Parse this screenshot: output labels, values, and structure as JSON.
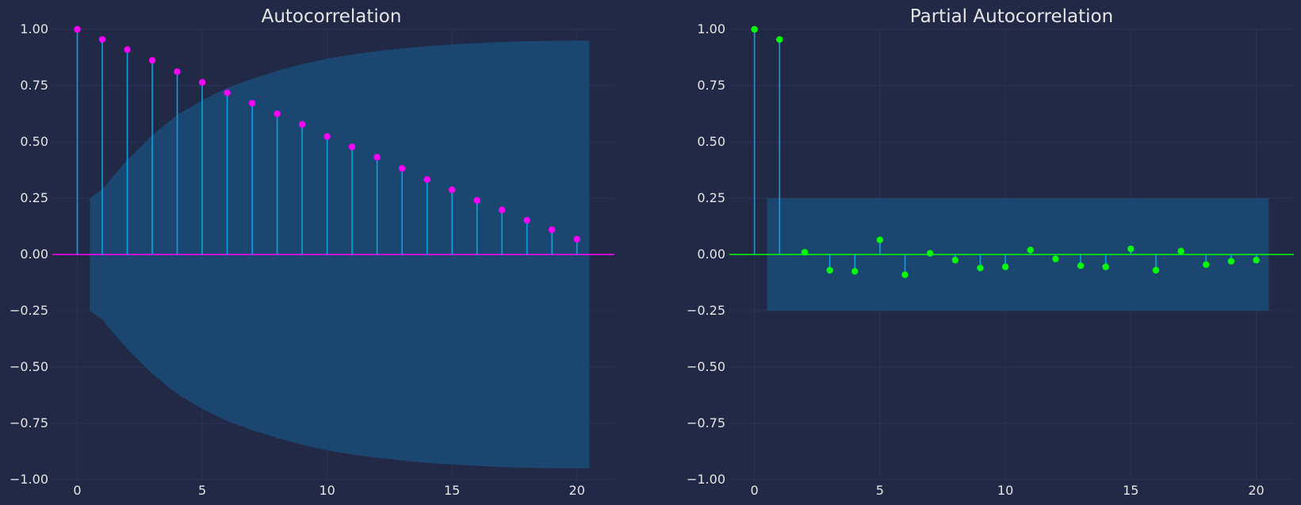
{
  "colors": {
    "background": "#212946",
    "grid": "#2A3459",
    "band": "#1B4670",
    "stem": "#08A2E2"
  },
  "chart_data": [
    {
      "type": "stem",
      "title": "Autocorrelation",
      "xlabel": "",
      "ylabel": "",
      "xlim": [
        -1,
        21.5
      ],
      "ylim": [
        -1.0,
        1.0
      ],
      "xticks": [
        0,
        5,
        10,
        15,
        20
      ],
      "xtick_labels": [
        "0",
        "5",
        "10",
        "15",
        "20"
      ],
      "yticks": [
        1.0,
        0.75,
        0.5,
        0.25,
        0.0,
        -0.25,
        -0.5,
        -0.75,
        -1.0
      ],
      "ytick_labels": [
        "1.00",
        "0.75",
        "0.50",
        "0.25",
        "0.00",
        "−0.25",
        "−0.50",
        "−0.75",
        "−1.00"
      ],
      "grid": true,
      "marker_color": "#FF00FF",
      "baseline_color": "#FF00FF",
      "x": [
        0,
        1,
        2,
        3,
        4,
        5,
        6,
        7,
        8,
        9,
        10,
        11,
        12,
        13,
        14,
        15,
        16,
        17,
        18,
        19,
        20
      ],
      "values": [
        1.0,
        0.955,
        0.91,
        0.862,
        0.812,
        0.765,
        0.718,
        0.672,
        0.625,
        0.578,
        0.524,
        0.478,
        0.432,
        0.382,
        0.333,
        0.287,
        0.24,
        0.198,
        0.152,
        0.11,
        0.068
      ],
      "confidence_band": {
        "x": [
          0.5,
          1,
          2,
          3,
          4,
          5,
          6,
          7,
          8,
          9,
          10,
          11,
          12,
          13,
          14,
          15,
          16,
          17,
          18,
          19,
          20,
          20.5
        ],
        "upper": [
          0.25,
          0.29,
          0.42,
          0.53,
          0.62,
          0.685,
          0.74,
          0.78,
          0.815,
          0.845,
          0.87,
          0.888,
          0.903,
          0.915,
          0.925,
          0.933,
          0.939,
          0.944,
          0.947,
          0.949,
          0.95,
          0.95
        ]
      }
    },
    {
      "type": "stem",
      "title": "Partial Autocorrelation",
      "xlabel": "",
      "ylabel": "",
      "xlim": [
        -1,
        21.5
      ],
      "ylim": [
        -1.0,
        1.0
      ],
      "xticks": [
        0,
        5,
        10,
        15,
        20
      ],
      "xtick_labels": [
        "0",
        "5",
        "10",
        "15",
        "20"
      ],
      "yticks": [
        1.0,
        0.75,
        0.5,
        0.25,
        0.0,
        -0.25,
        -0.5,
        -0.75,
        -1.0
      ],
      "ytick_labels": [
        "1.00",
        "0.75",
        "0.50",
        "0.25",
        "0.00",
        "−0.25",
        "−0.50",
        "−0.75",
        "−1.00"
      ],
      "grid": true,
      "marker_color": "#00FF00",
      "baseline_color": "#00FF00",
      "x": [
        0,
        1,
        2,
        3,
        4,
        5,
        6,
        7,
        8,
        9,
        10,
        11,
        12,
        13,
        14,
        15,
        16,
        17,
        18,
        19,
        20
      ],
      "values": [
        1.0,
        0.955,
        0.01,
        -0.07,
        -0.075,
        0.065,
        -0.09,
        0.005,
        -0.025,
        -0.06,
        -0.055,
        0.02,
        -0.02,
        -0.05,
        -0.055,
        0.025,
        -0.07,
        0.015,
        -0.045,
        -0.03,
        -0.025
      ],
      "confidence_band": {
        "x": [
          0.5,
          20.5
        ],
        "upper": [
          0.25,
          0.25
        ]
      }
    }
  ]
}
